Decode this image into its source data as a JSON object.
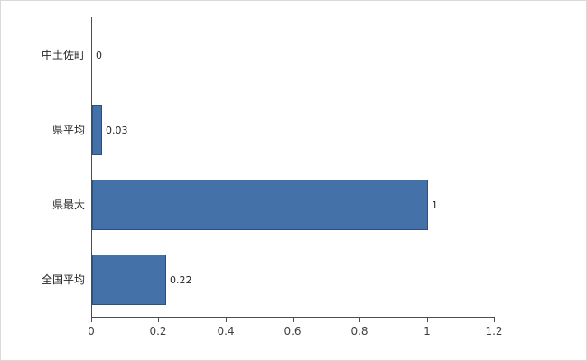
{
  "chart_data": {
    "type": "bar",
    "orientation": "horizontal",
    "title": "",
    "xlabel": "",
    "ylabel": "",
    "categories": [
      "中土佐町",
      "県平均",
      "県最大",
      "全国平均"
    ],
    "values": [
      0,
      0.03,
      1,
      0.22
    ],
    "value_labels": [
      "0",
      "0.03",
      "1",
      "0.22"
    ],
    "xlim": [
      0,
      1.2
    ],
    "x_ticks": [
      0,
      0.2,
      0.4,
      0.6,
      0.8,
      1,
      1.2
    ],
    "x_tick_labels": [
      "0",
      "0.2",
      "0.4",
      "0.6",
      "0.8",
      "1",
      "1.2"
    ],
    "grid": "off",
    "legend": "none",
    "bar_color": "#4472a8",
    "bar_border_color": "#2a5183",
    "axis_color": "#4d4d4d"
  }
}
